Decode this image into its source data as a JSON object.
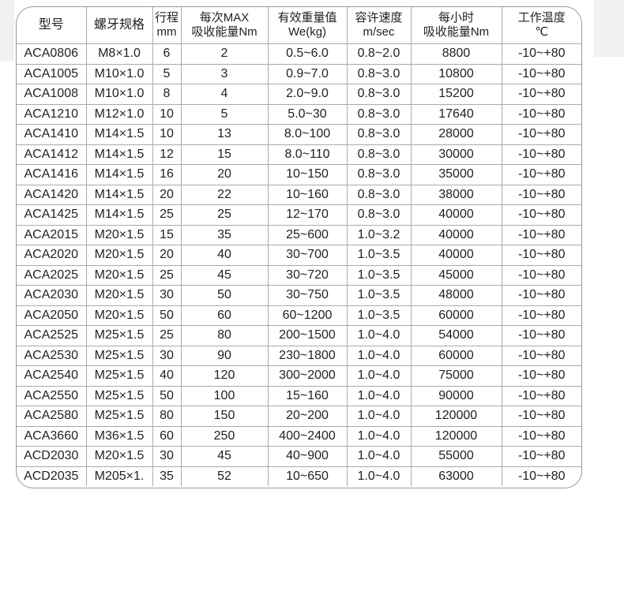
{
  "headers": [
    [
      "型号",
      ""
    ],
    [
      "螺牙规格",
      ""
    ],
    [
      "行程",
      "mm"
    ],
    [
      "每次MAX",
      "吸收能量Nm"
    ],
    [
      "有效重量值",
      "We(kg)"
    ],
    [
      "容许速度",
      "m/sec"
    ],
    [
      "每小时",
      "吸收能量Nm"
    ],
    [
      "工作温度",
      "℃"
    ]
  ],
  "rows": [
    [
      "ACA0806",
      "M8×1.0",
      "6",
      "2",
      "0.5~6.0",
      "0.8~2.0",
      "8800",
      "-10~+80"
    ],
    [
      "ACA1005",
      "M10×1.0",
      "5",
      "3",
      "0.9~7.0",
      "0.8~3.0",
      "10800",
      "-10~+80"
    ],
    [
      "ACA1008",
      "M10×1.0",
      "8",
      "4",
      "2.0~9.0",
      "0.8~3.0",
      "15200",
      "-10~+80"
    ],
    [
      "ACA1210",
      "M12×1.0",
      "10",
      "5",
      "5.0~30",
      "0.8~3.0",
      "17640",
      "-10~+80"
    ],
    [
      "ACA1410",
      "M14×1.5",
      "10",
      "13",
      "8.0~100",
      "0.8~3.0",
      "28000",
      "-10~+80"
    ],
    [
      "ACA1412",
      "M14×1.5",
      "12",
      "15",
      "8.0~110",
      "0.8~3.0",
      "30000",
      "-10~+80"
    ],
    [
      "ACA1416",
      "M14×1.5",
      "16",
      "20",
      "10~150",
      "0.8~3.0",
      "35000",
      "-10~+80"
    ],
    [
      "ACA1420",
      "M14×1.5",
      "20",
      "22",
      "10~160",
      "0.8~3.0",
      "38000",
      "-10~+80"
    ],
    [
      "ACA1425",
      "M14×1.5",
      "25",
      "25",
      "12~170",
      "0.8~3.0",
      "40000",
      "-10~+80"
    ],
    [
      "ACA2015",
      "M20×1.5",
      "15",
      "35",
      "25~600",
      "1.0~3.2",
      "40000",
      "-10~+80"
    ],
    [
      "ACA2020",
      "M20×1.5",
      "20",
      "40",
      "30~700",
      "1.0~3.5",
      "40000",
      "-10~+80"
    ],
    [
      "ACA2025",
      "M20×1.5",
      "25",
      "45",
      "30~720",
      "1.0~3.5",
      "45000",
      "-10~+80"
    ],
    [
      "ACA2030",
      "M20×1.5",
      "30",
      "50",
      "30~750",
      "1.0~3.5",
      "48000",
      "-10~+80"
    ],
    [
      "ACA2050",
      "M20×1.5",
      "50",
      "60",
      "60~1200",
      "1.0~3.5",
      "60000",
      "-10~+80"
    ],
    [
      "ACA2525",
      "M25×1.5",
      "25",
      "80",
      "200~1500",
      "1.0~4.0",
      "54000",
      "-10~+80"
    ],
    [
      "ACA2530",
      "M25×1.5",
      "30",
      "90",
      "230~1800",
      "1.0~4.0",
      "60000",
      "-10~+80"
    ],
    [
      "ACA2540",
      "M25×1.5",
      "40",
      "120",
      "300~2000",
      "1.0~4.0",
      "75000",
      "-10~+80"
    ],
    [
      "ACA2550",
      "M25×1.5",
      "50",
      "100",
      "15~160",
      "1.0~4.0",
      "90000",
      "-10~+80"
    ],
    [
      "ACA2580",
      "M25×1.5",
      "80",
      "150",
      "20~200",
      "1.0~4.0",
      "120000",
      "-10~+80"
    ],
    [
      "ACA3660",
      "M36×1.5",
      "60",
      "250",
      "400~2400",
      "1.0~4.0",
      "120000",
      "-10~+80"
    ],
    [
      "ACD2030",
      "M20×1.5",
      "30",
      "45",
      "40~900",
      "1.0~4.0",
      "55000",
      "-10~+80"
    ],
    [
      "ACD2035",
      "M205×1.",
      "35",
      "52",
      "10~650",
      "1.0~4.0",
      "63000",
      "-10~+80"
    ]
  ]
}
